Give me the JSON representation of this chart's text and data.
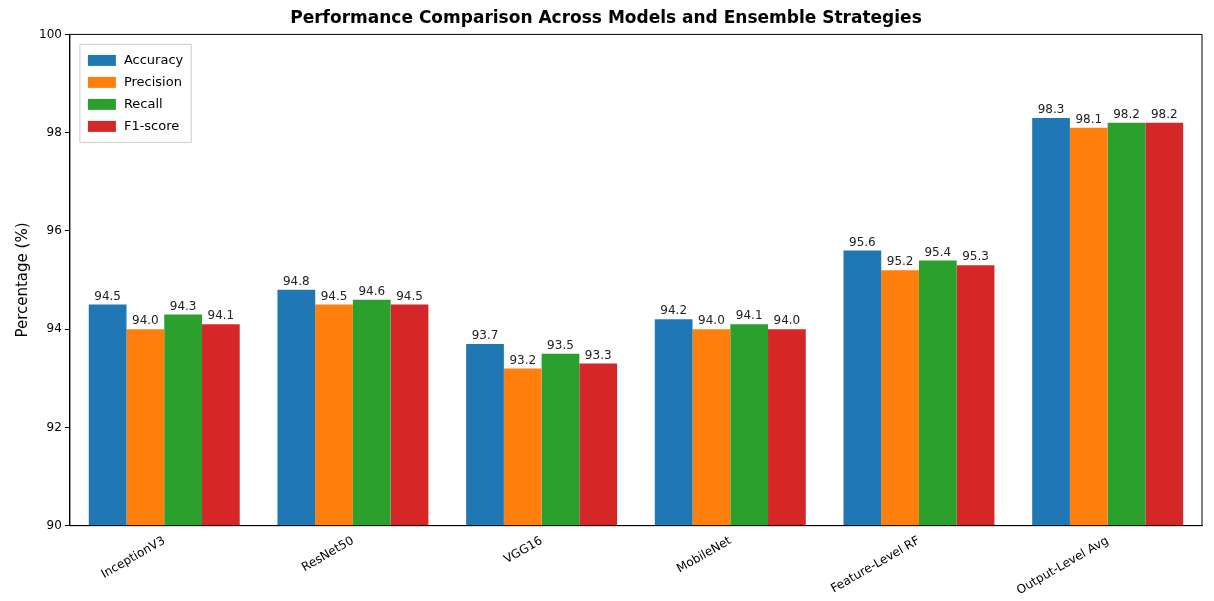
{
  "chart_data": {
    "type": "bar",
    "title": "Performance Comparison Across Models and Ensemble Strategies",
    "ylabel": "Percentage (%)",
    "categories": [
      "InceptionV3",
      "ResNet50",
      "VGG16",
      "MobileNet",
      "Feature-Level RF",
      "Output-Level Avg"
    ],
    "series": [
      {
        "name": "Accuracy",
        "color": "#1f77b4",
        "values": [
          94.5,
          94.8,
          93.7,
          94.2,
          95.6,
          98.3
        ],
        "value_labels": [
          "94.5",
          "94.8",
          "93.7",
          "94.2",
          "95.6",
          "98.3"
        ]
      },
      {
        "name": "Precision",
        "color": "#ff7f0e",
        "values": [
          94.0,
          94.5,
          93.2,
          94.0,
          95.2,
          98.1
        ],
        "value_labels": [
          "94.0",
          "94.5",
          "93.2",
          "94.0",
          "95.2",
          "98.1"
        ]
      },
      {
        "name": "Recall",
        "color": "#2ca02c",
        "values": [
          94.3,
          94.6,
          93.5,
          94.1,
          95.4,
          98.2
        ],
        "value_labels": [
          "94.3",
          "94.6",
          "93.5",
          "94.1",
          "95.4",
          "98.2"
        ]
      },
      {
        "name": "F1-score",
        "color": "#d62728",
        "values": [
          94.1,
          94.5,
          93.3,
          94.0,
          95.3,
          98.2
        ],
        "value_labels": [
          "94.1",
          "94.5",
          "93.3",
          "94.0",
          "95.3",
          "98.2"
        ]
      }
    ],
    "ylim": [
      90,
      100
    ],
    "yticks": [
      90,
      92,
      94,
      96,
      98,
      100
    ],
    "grid": false,
    "legend": "top left"
  }
}
